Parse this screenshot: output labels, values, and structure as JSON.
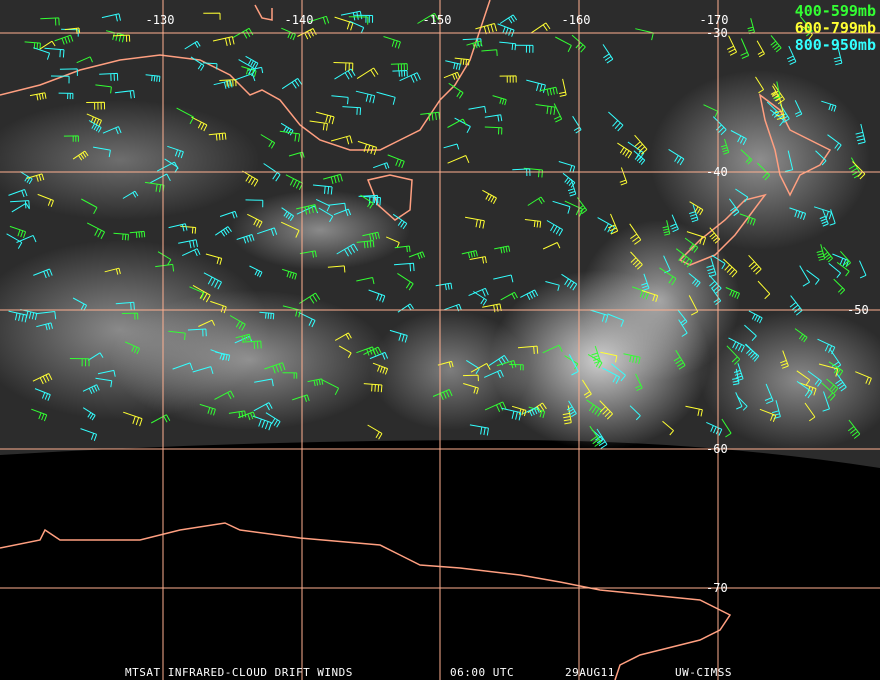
{
  "map": {
    "longitude_labels": [
      "-130",
      "-140",
      "-150",
      "-160",
      "-170"
    ],
    "latitude_labels": [
      "-30",
      "-40",
      "-50",
      "-60",
      "-70"
    ]
  },
  "legend": {
    "items": [
      {
        "label": "400-599mb",
        "color": "#33ff33"
      },
      {
        "label": "600-799mb",
        "color": "#ffff33"
      },
      {
        "label": "800-950mb",
        "color": "#33ffff"
      }
    ]
  },
  "footer": {
    "product": "MTSAT INFRARED-CLOUD DRIFT WINDS",
    "time": "06:00 UTC",
    "date": "29AUG11",
    "source": "UW-CIMSS"
  }
}
